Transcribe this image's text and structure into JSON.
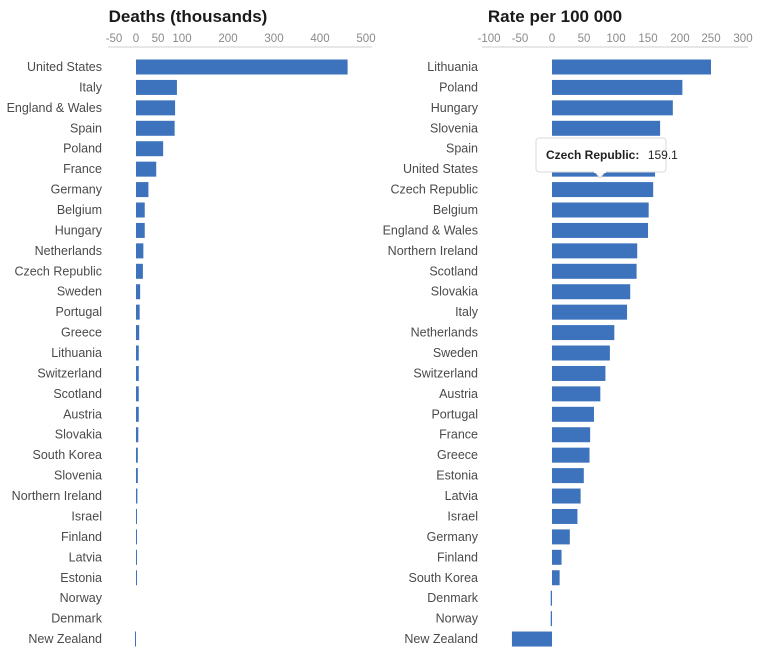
{
  "chart_data": [
    {
      "type": "bar",
      "orientation": "horizontal",
      "title": "Deaths (thousands)",
      "xlim": [
        -50,
        500
      ],
      "xticks": [
        "-50",
        "0",
        "50",
        "100",
        "200",
        "300",
        "400",
        "500"
      ],
      "categories": [
        "United States",
        "Italy",
        "England & Wales",
        "Spain",
        "Poland",
        "France",
        "Germany",
        "Belgium",
        "Hungary",
        "Netherlands",
        "Czech Republic",
        "Sweden",
        "Portugal",
        "Greece",
        "Lithuania",
        "Switzerland",
        "Scotland",
        "Austria",
        "Slovakia",
        "South Korea",
        "Slovenia",
        "Northern Ireland",
        "Israel",
        "Finland",
        "Latvia",
        "Estonia",
        "Norway",
        "Denmark",
        "New Zealand"
      ],
      "values": [
        460,
        89,
        85,
        84,
        59,
        44,
        27,
        19,
        19,
        16,
        15,
        9,
        8,
        7,
        6,
        6,
        6,
        6,
        5,
        4,
        4,
        3,
        2,
        1,
        1,
        1,
        0,
        0,
        -1
      ]
    },
    {
      "type": "bar",
      "orientation": "horizontal",
      "title": "Rate per 100 000",
      "xlim": [
        -100,
        300
      ],
      "xticks": [
        "-100",
        "-50",
        "0",
        "50",
        "100",
        "150",
        "200",
        "250",
        "300"
      ],
      "categories": [
        "Lithuania",
        "Poland",
        "Hungary",
        "Slovenia",
        "Spain",
        "United States",
        "Czech Republic",
        "Belgium",
        "England & Wales",
        "Northern Ireland",
        "Scotland",
        "Slovakia",
        "Italy",
        "Netherlands",
        "Sweden",
        "Switzerland",
        "Austria",
        "Portugal",
        "France",
        "Greece",
        "Estonia",
        "Latvia",
        "Israel",
        "Germany",
        "Finland",
        "South Korea",
        "Denmark",
        "Norway",
        "New Zealand"
      ],
      "values": [
        250,
        205,
        190,
        170,
        165,
        162,
        159.1,
        152,
        151,
        134,
        133,
        123,
        118,
        98,
        91,
        84,
        76,
        66,
        60,
        59,
        50,
        45,
        40,
        28,
        15,
        12,
        -2,
        -2,
        -63
      ]
    }
  ],
  "tooltip": {
    "label": "Czech Republic:",
    "value": "159.1"
  }
}
